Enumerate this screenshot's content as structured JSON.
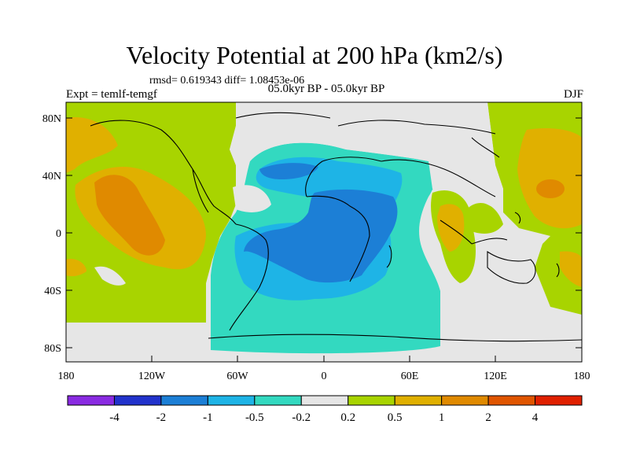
{
  "title": "Velocity Potential at 200 hPa (km2/s)",
  "stats": "rmsd= 0.619343 diff= 1.08453e-06",
  "experiment": "Expt = temlf-temgf",
  "period": "05.0kyr BP - 05.0kyr BP",
  "season": "DJF",
  "lat_ticks": [
    "80N",
    "40N",
    "0",
    "40S",
    "80S"
  ],
  "lon_ticks": [
    "180",
    "120W",
    "60W",
    "0",
    "60E",
    "120E",
    "180"
  ],
  "colorbar": {
    "labels": [
      "-4",
      "-2",
      "-1",
      "-0.5",
      "-0.2",
      "0.2",
      "0.5",
      "1",
      "2",
      "4"
    ],
    "colors": [
      "#8a2be2",
      "#2233cc",
      "#1c7fd6",
      "#1eb4e6",
      "#33d9c0",
      "#e6e6e6",
      "#a8d400",
      "#e0b000",
      "#e08a00",
      "#e05500",
      "#e02000"
    ]
  }
}
